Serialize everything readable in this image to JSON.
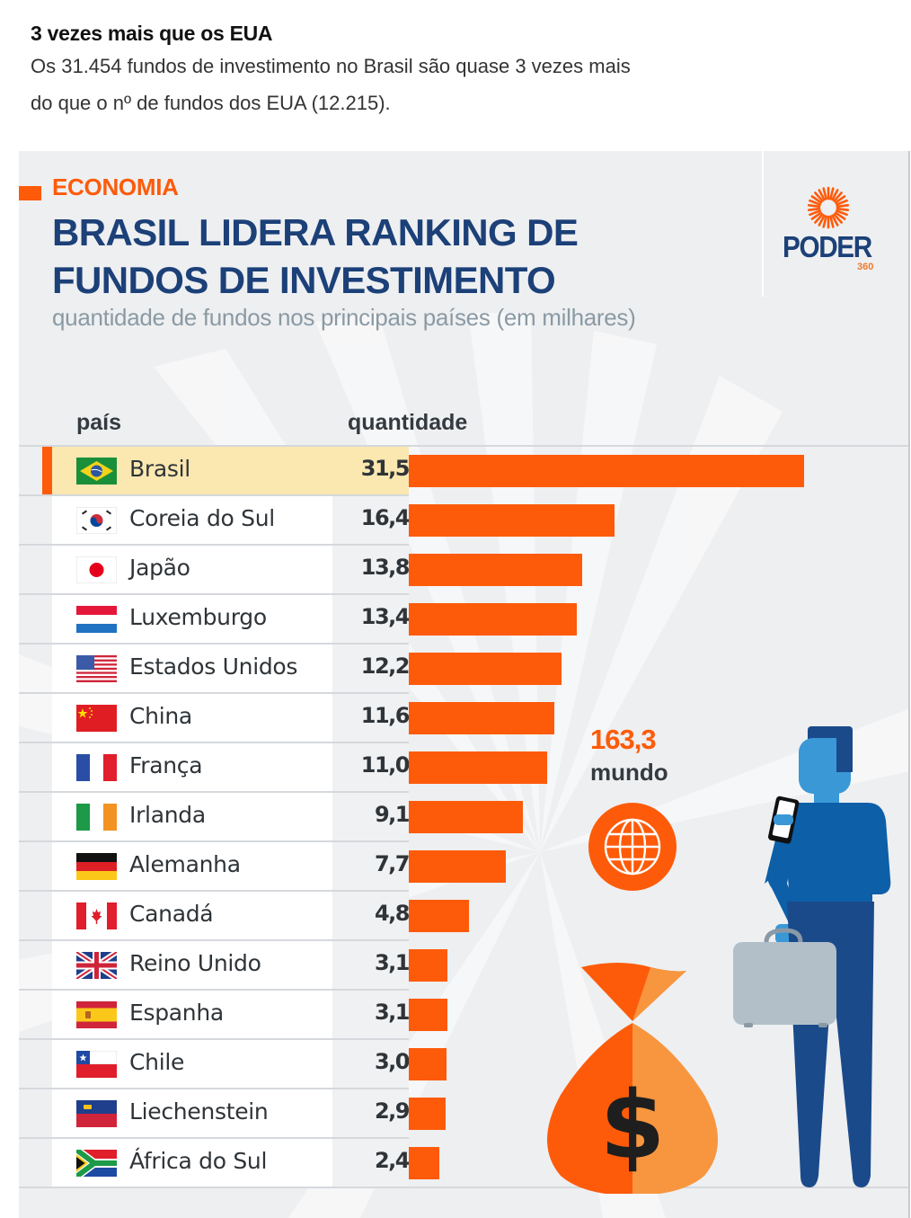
{
  "intro": {
    "heading": "3 vezes mais que os EUA",
    "body": "Os 31.454 fundos de investimento no Brasil são quase 3 vezes mais do que o nº de fundos dos EUA (12.215)."
  },
  "infographic": {
    "tag": "ECONOMIA",
    "title_line1": "BRASIL LIDERA RANKING DE",
    "title_line2": "FUNDOS DE INVESTIMENTO",
    "subtitle": "quantidade de fundos nos principais países (em milhares)",
    "logo": {
      "word": "PODER",
      "number": "360",
      "icon": "sunburst-logo-icon"
    },
    "world": {
      "value": "163,3",
      "label": "mundo",
      "icon": "globe-icon"
    },
    "colors": {
      "accent": "#fd5b0a",
      "title": "#1c4078",
      "highlight": "#fbe8b0"
    }
  },
  "chart_data": {
    "type": "bar",
    "orientation": "horizontal",
    "title": "BRASIL LIDERA RANKING DE FUNDOS DE INVESTIMENTO",
    "subtitle": "quantidade de fundos nos principais países (em milhares)",
    "column_headers": {
      "country": "país",
      "value": "quantidade"
    },
    "unit": "milhares",
    "highlighted": "Brasil",
    "categories": [
      "Brasil",
      "Coreia do Sul",
      "Japão",
      "Luxemburgo",
      "Estados Unidos",
      "China",
      "França",
      "Irlanda",
      "Alemanha",
      "Canadá",
      "Reino Unido",
      "Espanha",
      "Chile",
      "Liechenstein",
      "África do Sul"
    ],
    "values": [
      31.5,
      16.4,
      13.8,
      13.4,
      12.2,
      11.6,
      11.0,
      9.1,
      7.7,
      4.8,
      3.1,
      3.1,
      3.0,
      2.9,
      2.4
    ],
    "value_labels": [
      "31,5",
      "16,4",
      "13,8",
      "13,4",
      "12,2",
      "11,6",
      "11,0",
      "9,1",
      "7,7",
      "4,8",
      "3,1",
      "3,1",
      "3,0",
      "2,9",
      "2,4"
    ],
    "flags": [
      "br",
      "kr",
      "jp",
      "lu",
      "us",
      "cn",
      "fr",
      "ie",
      "de",
      "ca",
      "gb",
      "es",
      "cl",
      "li",
      "za"
    ],
    "xlim": [
      0,
      31.5
    ],
    "grid": false,
    "annotation": {
      "total_world": 163.3,
      "label": "mundo"
    }
  }
}
